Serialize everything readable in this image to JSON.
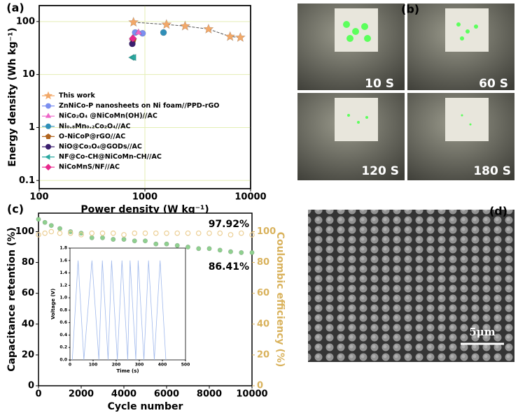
{
  "chart_data": [
    {
      "type": "scatter",
      "label": "(a)",
      "xlabel": "Power density (W kg⁻¹)",
      "ylabel": "Energy density (Wh kg⁻¹)",
      "xscale": "log",
      "yscale": "log",
      "xlim": [
        100,
        10000
      ],
      "ylim": [
        0.07,
        200
      ],
      "xticks": [
        100,
        1000,
        10000
      ],
      "yticks": [
        0.1,
        1,
        10,
        100
      ],
      "grid": true,
      "legend": "lower left",
      "series": [
        {
          "name": "This work",
          "color": "#f2a868",
          "marker": "star",
          "line": true,
          "x": [
            780,
            1600,
            2400,
            4000,
            6400,
            8000
          ],
          "values": [
            97,
            88,
            82,
            72,
            52,
            50
          ]
        },
        {
          "name": "ZnNiCo-P nanosheets on Ni foam//PPD-rGO",
          "color": "#7b8ff0",
          "marker": "circle",
          "x": [
            810,
            950
          ],
          "values": [
            62,
            60
          ]
        },
        {
          "name": "NiCo₂O₄ @NiCoMn(OH)//AC",
          "color": "#ee66c8",
          "marker": "triangle",
          "x": [
            870,
            760
          ],
          "values": [
            62,
            48
          ]
        },
        {
          "name": "Ni₀.₈Mn₀.₂Co₂O₄//AC",
          "color": "#2f8fb8",
          "marker": "circle",
          "x": [
            1500
          ],
          "values": [
            62
          ]
        },
        {
          "name": "O-NiCoP@rGO//AC",
          "color": "#b0641e",
          "marker": "pentagon",
          "x": [
            775
          ],
          "values": [
            45
          ]
        },
        {
          "name": "NiO@Co₃O₄@GODs//AC",
          "color": "#3a1f6e",
          "marker": "circle",
          "x": [
            760
          ],
          "values": [
            38
          ]
        },
        {
          "name": "NF@Co-CH@NiCoMn-CH//AC",
          "color": "#2aa8a0",
          "marker": "tri-left",
          "x": [
            760,
            790
          ],
          "values": [
            21,
            21
          ]
        },
        {
          "name": "NiCoMnS/NF//AC",
          "color": "#e8288c",
          "marker": "diamond",
          "x": [
            770
          ],
          "values": [
            48
          ]
        }
      ]
    },
    {
      "type": "line",
      "label": "(c)",
      "xlabel": "Cycle number",
      "ylabel": "Capacitance retention (%)",
      "y2label": "Coulombic efficiency (%)",
      "xlim": [
        0,
        10000
      ],
      "xticks": [
        0,
        2000,
        4000,
        6000,
        8000,
        10000
      ],
      "ylim": [
        0,
        112
      ],
      "yticks": [
        0,
        20,
        40,
        60,
        80,
        100
      ],
      "y2lim": [
        0,
        112
      ],
      "y2ticks": [
        0,
        20,
        40,
        60,
        80,
        100
      ],
      "y2color": "#d9b25c",
      "annotations": [
        {
          "text": "97.92%"
        },
        {
          "text": "86.41%"
        }
      ],
      "series": [
        {
          "color": "#8fd08f",
          "marker": "circle",
          "x": [
            0,
            300,
            600,
            1000,
            1500,
            2000,
            2500,
            3000,
            3500,
            4000,
            4500,
            5000,
            5500,
            6000,
            6500,
            7000,
            7500,
            8000,
            8500,
            9000,
            9500,
            10000
          ],
          "values": [
            108,
            106,
            104,
            102,
            100,
            99,
            96,
            96,
            95,
            95,
            94,
            94,
            92,
            92,
            91,
            90,
            89,
            89,
            88,
            87,
            86.41,
            86.41
          ]
        },
        {
          "color": "#eccf94",
          "marker": "ring",
          "axis": "y2",
          "x": [
            0,
            300,
            600,
            1000,
            1500,
            2000,
            2500,
            3000,
            3500,
            4000,
            4500,
            5000,
            5500,
            6000,
            6500,
            7000,
            7500,
            8000,
            8500,
            9000,
            9500,
            10000
          ],
          "values": [
            98,
            99,
            100,
            99,
            99,
            98,
            99,
            99,
            99,
            98,
            99,
            99,
            99,
            99,
            99,
            99,
            99,
            99,
            99,
            98,
            99,
            97.92
          ]
        }
      ]
    },
    {
      "type": "line",
      "xlabel": "Time (s)",
      "ylabel": "Voltage (V)",
      "xlim": [
        0,
        500
      ],
      "xticks": [
        0,
        100,
        200,
        300,
        400,
        500
      ],
      "ylim": [
        0,
        1.8
      ],
      "yticks": [
        {
          "value": 0,
          "label": "0.0"
        },
        0.2,
        0.4,
        0.6,
        0.8,
        {
          "value": 1,
          "label": "1.0"
        },
        1.2,
        1.4,
        1.6,
        1.8
      ],
      "series": [
        {
          "color": "#9fb8ec",
          "line": true,
          "x": [
            10,
            35,
            60,
            95,
            125,
            140,
            165,
            180,
            205,
            225,
            250,
            260,
            285,
            295,
            320,
            340,
            365,
            390,
            415
          ],
          "values": [
            0,
            1.6,
            0,
            1.6,
            0,
            1.6,
            0,
            1.6,
            0,
            1.6,
            0,
            1.6,
            0,
            1.6,
            0,
            1.6,
            0,
            1.6,
            0
          ]
        }
      ]
    }
  ],
  "photos": {
    "label": "(b)",
    "captions": [
      "10 S",
      "60 S",
      "120 S",
      "180 S"
    ]
  },
  "sem": {
    "label": "(d)",
    "scale_bar": "5μm"
  }
}
